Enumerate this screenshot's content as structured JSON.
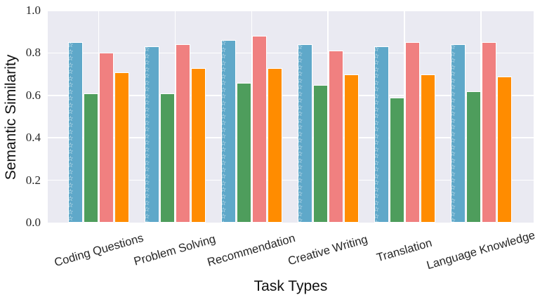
{
  "figure": {
    "background": "#ffffff",
    "plot_background": "#eaeaf2",
    "grid_color": "#ffffff"
  },
  "chart_data": {
    "type": "bar",
    "title": "",
    "xlabel": "Task Types",
    "ylabel": "Semantic Similarity",
    "ylim": [
      0.0,
      1.0
    ],
    "yticks": [
      0.0,
      0.2,
      0.4,
      0.6,
      0.8,
      1.0
    ],
    "yticklabels": [
      "0.0",
      "0.2",
      "0.4",
      "0.6",
      "0.8",
      "1.0"
    ],
    "grid": true,
    "legend_position": "none",
    "categories": [
      "Coding Questions",
      "Problem Solving",
      "Recommendation",
      "Creative Writing",
      "Translation",
      "Language Knowledge"
    ],
    "series": [
      {
        "name": "series-blue-stars",
        "color": "#5FA8C9",
        "hatch": "stars",
        "values": [
          0.85,
          0.83,
          0.86,
          0.84,
          0.83,
          0.84
        ]
      },
      {
        "name": "series-green-dots",
        "color": "#4E9D5C",
        "hatch": "dots",
        "values": [
          0.61,
          0.61,
          0.66,
          0.65,
          0.59,
          0.62
        ]
      },
      {
        "name": "series-coral-circles",
        "color": "#F08080",
        "hatch": "circles",
        "values": [
          0.8,
          0.84,
          0.88,
          0.81,
          0.85,
          0.85
        ]
      },
      {
        "name": "series-orange-crosshatch",
        "color": "#FF8C00",
        "hatch": "cross",
        "values": [
          0.71,
          0.73,
          0.73,
          0.7,
          0.7,
          0.69
        ]
      }
    ],
    "hatch_glyphs": {
      "stars": "☆"
    }
  }
}
